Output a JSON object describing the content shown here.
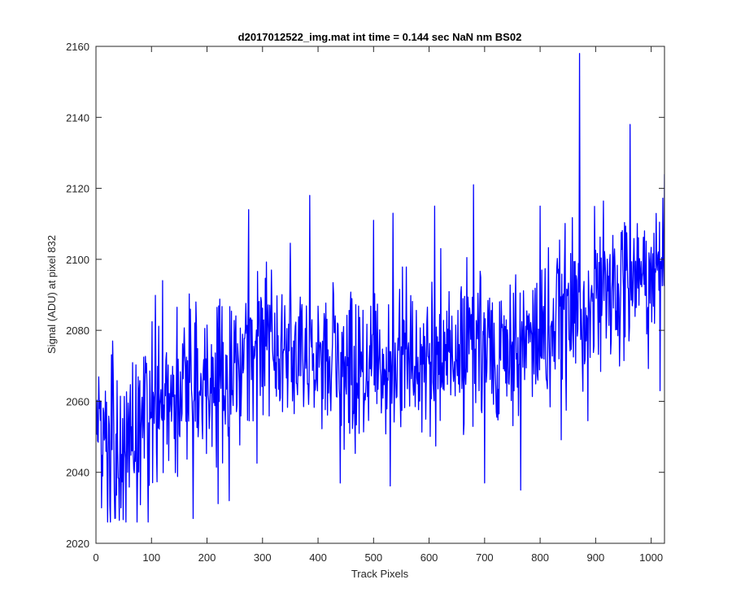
{
  "chart_data": {
    "type": "line",
    "title": "d2017012522_img.mat int time = 0.144 sec  NaN nm BS02",
    "xlabel": "Track Pixels",
    "ylabel": "Signal (ADU) at pixel 832",
    "xlim": [
      0,
      1024
    ],
    "ylim": [
      2020,
      2160
    ],
    "xticks": [
      0,
      100,
      200,
      300,
      400,
      500,
      600,
      700,
      800,
      900,
      1000
    ],
    "xtick_labels": [
      "0",
      "100",
      "200",
      "300",
      "400",
      "500",
      "600",
      "700",
      "800",
      "900",
      "1000"
    ],
    "yticks": [
      2020,
      2040,
      2060,
      2080,
      2100,
      2120,
      2140,
      2160
    ],
    "ytick_labels": [
      "2020",
      "2040",
      "2060",
      "2080",
      "2100",
      "2120",
      "2140",
      "2160"
    ],
    "grid": false,
    "line_color": "#0000ff",
    "axis_color": "#262626",
    "series": [
      {
        "name": "Signal",
        "x_start": 1,
        "x_step": 1,
        "trend": [
          [
            1,
            2048
          ],
          [
            50,
            2049
          ],
          [
            100,
            2058
          ],
          [
            150,
            2062
          ],
          [
            200,
            2064
          ],
          [
            250,
            2070
          ],
          [
            300,
            2078
          ],
          [
            350,
            2075
          ],
          [
            400,
            2072
          ],
          [
            450,
            2068
          ],
          [
            500,
            2070
          ],
          [
            550,
            2072
          ],
          [
            600,
            2072
          ],
          [
            650,
            2073
          ],
          [
            700,
            2074
          ],
          [
            750,
            2075
          ],
          [
            800,
            2078
          ],
          [
            850,
            2084
          ],
          [
            900,
            2088
          ],
          [
            950,
            2092
          ],
          [
            1000,
            2096
          ],
          [
            1024,
            2098
          ]
        ],
        "noise_sd": 11,
        "anchor_points": [
          [
            10,
            2030
          ],
          [
            34,
            2027
          ],
          [
            45,
            2030
          ],
          [
            30,
            2077
          ],
          [
            120,
            2094
          ],
          [
            175,
            2027
          ],
          [
            180,
            2088
          ],
          [
            240,
            2032
          ],
          [
            275,
            2114
          ],
          [
            385,
            2118
          ],
          [
            440,
            2037
          ],
          [
            500,
            2111
          ],
          [
            535,
            2113
          ],
          [
            610,
            2115
          ],
          [
            680,
            2121
          ],
          [
            700,
            2037
          ],
          [
            765,
            2035
          ],
          [
            800,
            2115
          ],
          [
            871,
            2158
          ],
          [
            962,
            2138
          ],
          [
            1016,
            2063
          ],
          [
            1024,
            2124
          ]
        ]
      }
    ]
  }
}
